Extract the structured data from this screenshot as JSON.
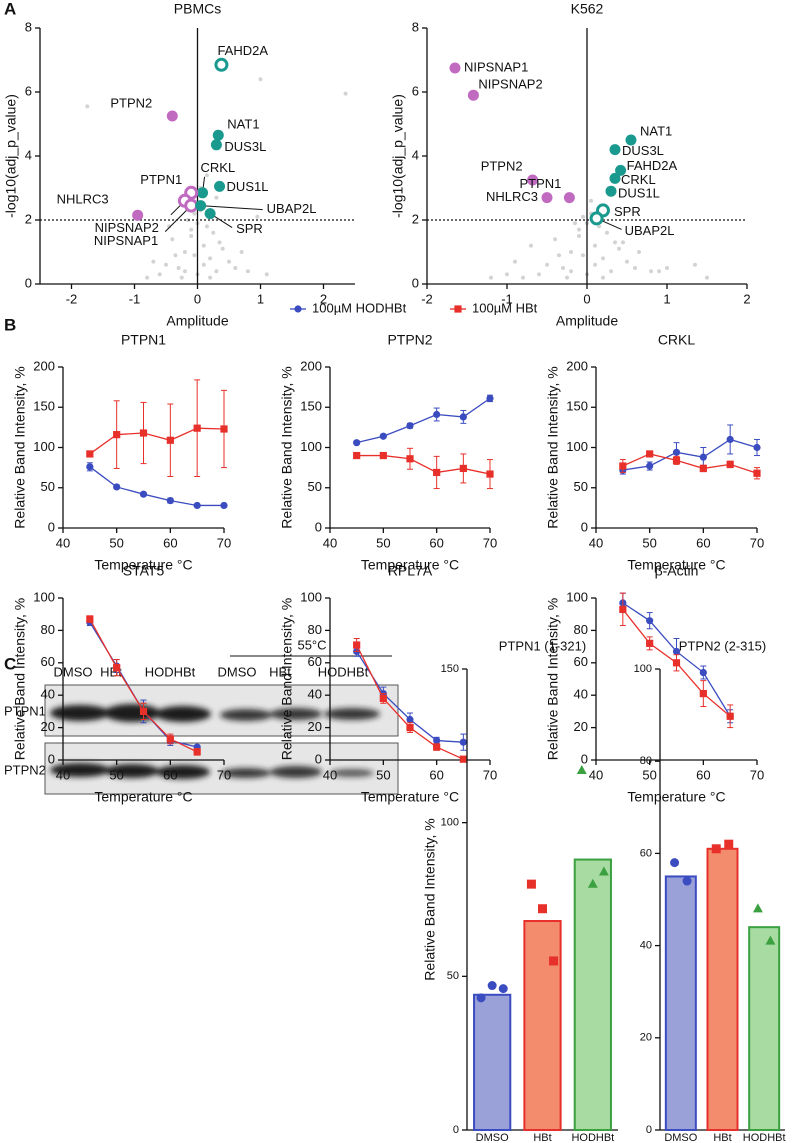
{
  "panel_labels": [
    "A",
    "B",
    "C"
  ],
  "blot": {
    "heading": "55°C",
    "lanes": [
      "DMSO",
      "HBt",
      "HODHBt",
      "DMSO",
      "HBt",
      "HODHBt"
    ],
    "rows": [
      "PTPN1",
      "PTPN2"
    ]
  },
  "chart_data": [
    {
      "type": "scatter",
      "title": "PBMCs",
      "x_label": "Amplitude",
      "y_label": "-log10(adj_p_value)",
      "xlim": [
        -2.5,
        2.5
      ],
      "ylim": [
        0,
        8
      ],
      "xticks": [
        -2,
        -1,
        0,
        1,
        2
      ],
      "yticks": [
        0,
        2,
        4,
        6,
        8
      ],
      "threshold": 2,
      "vline": 0,
      "background": {
        "color": "#d3d3d3",
        "x": [
          -0.3,
          -0.2,
          -0.1,
          0,
          0.1,
          0.2,
          0.3,
          -0.5,
          0.5,
          -0.4,
          0.4,
          -0.15,
          0.15,
          -0.05,
          0.05,
          -0.25,
          0.25,
          -0.6,
          0.6,
          -0.8,
          0.8,
          -0.35,
          0.35,
          -0.1,
          0.1,
          0,
          -0.2,
          0.2,
          -1.75,
          2.35,
          1.0,
          0.95,
          0.15,
          0.3,
          -0.45,
          0.7,
          -0.7,
          0.05,
          -0.05,
          1.1
        ],
        "y": [
          0.5,
          1.0,
          1.5,
          0.3,
          1.2,
          0.8,
          0.4,
          0.6,
          0.7,
          1.4,
          1.1,
          2.0,
          1.8,
          0.9,
          2.3,
          0.2,
          1.6,
          0.3,
          0.5,
          0.2,
          0.4,
          0.9,
          1.3,
          1.7,
          0.6,
          1.9,
          0.4,
          0.2,
          5.55,
          5.95,
          6.4,
          2.1,
          3.4,
          2.7,
          1.8,
          1.0,
          0.7,
          3.0,
          2.2,
          0.3
        ]
      },
      "points": [
        {
          "label": "FAHD2A",
          "x": 0.38,
          "y": 6.85,
          "color": "#1a9a8e",
          "style": "ring"
        },
        {
          "label": "PTPN2",
          "x": -0.4,
          "y": 5.25,
          "color": "#c06ac0",
          "style": "filled"
        },
        {
          "label": "NAT1",
          "x": 0.33,
          "y": 4.65,
          "color": "#1a9a8e",
          "style": "filled"
        },
        {
          "label": "DUS3L",
          "x": 0.3,
          "y": 4.35,
          "color": "#1a9a8e",
          "style": "filled"
        },
        {
          "label": "CRKL",
          "x": 0.08,
          "y": 2.85,
          "color": "#1a9a8e",
          "style": "filled"
        },
        {
          "label": "DUS1L",
          "x": 0.35,
          "y": 3.05,
          "color": "#1a9a8e",
          "style": "filled"
        },
        {
          "label": "PTPN1",
          "x": -0.1,
          "y": 2.85,
          "color": "#c06ac0",
          "style": "ring"
        },
        {
          "label": "NHLRC3",
          "x": -0.95,
          "y": 2.15,
          "color": "#c06ac0",
          "style": "filled"
        },
        {
          "label": "NIPSNAP2",
          "x": -0.2,
          "y": 2.6,
          "color": "#c06ac0",
          "style": "ring"
        },
        {
          "label": "NIPSNAP1",
          "x": -0.1,
          "y": 2.45,
          "color": "#c06ac0",
          "style": "ring"
        },
        {
          "label": "UBAP2L",
          "x": 0.05,
          "y": 2.45,
          "color": "#1a9a8e",
          "style": "filled"
        },
        {
          "label": "SPR",
          "x": 0.2,
          "y": 2.2,
          "color": "#1a9a8e",
          "style": "filled"
        }
      ]
    },
    {
      "type": "scatter",
      "title": "K562",
      "x_label": "Amplitude",
      "y_label": "-log10(adj_p_value)",
      "xlim": [
        -2,
        2
      ],
      "ylim": [
        0,
        8
      ],
      "xticks": [
        -2,
        -1,
        0,
        1,
        2
      ],
      "yticks": [
        0,
        2,
        4,
        6,
        8
      ],
      "threshold": 2,
      "vline": 0,
      "background": {
        "color": "#d3d3d3",
        "x": [
          -0.3,
          -0.2,
          -0.1,
          0,
          0.1,
          0.2,
          0.3,
          -0.5,
          0.5,
          -0.4,
          0.4,
          -0.15,
          0.15,
          -0.05,
          0.05,
          -0.25,
          0.25,
          -0.6,
          0.6,
          -0.8,
          0.8,
          -0.35,
          0.35,
          -0.1,
          0.1,
          0,
          -0.2,
          0.2,
          -1.0,
          1.0,
          1.35,
          -1.2,
          0.65,
          0.45,
          -0.7,
          0.9,
          -0.9,
          0.05,
          -0.05,
          1.5
        ],
        "y": [
          0.5,
          1.0,
          1.5,
          0.3,
          1.2,
          0.8,
          0.4,
          0.6,
          0.7,
          1.4,
          1.1,
          1.9,
          1.8,
          0.9,
          2.2,
          0.2,
          1.6,
          0.3,
          0.5,
          0.2,
          0.4,
          0.9,
          1.3,
          1.7,
          0.6,
          1.9,
          0.4,
          0.2,
          0.3,
          0.5,
          0.6,
          0.2,
          1.0,
          1.3,
          1.2,
          0.4,
          0.7,
          2.6,
          2.1,
          0.2
        ]
      },
      "points": [
        {
          "label": "NIPSNAP1",
          "x": -1.65,
          "y": 6.75,
          "color": "#c06ac0",
          "style": "filled"
        },
        {
          "label": "NIPSNAP2",
          "x": -1.42,
          "y": 5.9,
          "color": "#c06ac0",
          "style": "filled"
        },
        {
          "label": "PTPN2",
          "x": -0.68,
          "y": 3.25,
          "color": "#c06ac0",
          "style": "filled"
        },
        {
          "label": "NHLRC3",
          "x": -0.5,
          "y": 2.7,
          "color": "#c06ac0",
          "style": "filled"
        },
        {
          "label": "PTPN1",
          "x": -0.22,
          "y": 2.7,
          "color": "#c06ac0",
          "style": "filled"
        },
        {
          "label": "NAT1",
          "x": 0.55,
          "y": 4.5,
          "color": "#1a9a8e",
          "style": "filled"
        },
        {
          "label": "DUS3L",
          "x": 0.35,
          "y": 4.2,
          "color": "#1a9a8e",
          "style": "filled"
        },
        {
          "label": "FAHD2A",
          "x": 0.42,
          "y": 3.55,
          "color": "#1a9a8e",
          "style": "filled"
        },
        {
          "label": "CRKL",
          "x": 0.35,
          "y": 3.3,
          "color": "#1a9a8e",
          "style": "filled"
        },
        {
          "label": "DUS1L",
          "x": 0.3,
          "y": 2.9,
          "color": "#1a9a8e",
          "style": "filled"
        },
        {
          "label": "SPR",
          "x": 0.2,
          "y": 2.3,
          "color": "#1a9a8e",
          "style": "ring"
        },
        {
          "label": "UBAP2L",
          "x": 0.12,
          "y": 2.05,
          "color": "#1a9a8e",
          "style": "ring"
        }
      ]
    },
    {
      "type": "line",
      "title": "PTPN1",
      "x_label": "Temperature  °C",
      "y_label": "Relative Band Intensity, %",
      "x": [
        45,
        50,
        55,
        60,
        65,
        70
      ],
      "xlim": [
        40,
        70
      ],
      "ylim": [
        0,
        200
      ],
      "xticks": [
        40,
        50,
        60,
        70
      ],
      "yticks": [
        0,
        50,
        100,
        150,
        200
      ],
      "series": [
        {
          "name": "100µM HODHBt",
          "color": "#3b4cc0",
          "marker": "circle",
          "values": [
            76,
            51,
            42,
            34,
            28,
            28
          ],
          "errors": [
            5,
            2,
            2,
            3,
            1,
            1
          ]
        },
        {
          "name": "100µM HBt",
          "color": "#e8302a",
          "marker": "square",
          "values": [
            92,
            116,
            118,
            109,
            124,
            123
          ],
          "errors": [
            3,
            42,
            38,
            45,
            60,
            48
          ]
        }
      ]
    },
    {
      "type": "line",
      "title": "PTPN2",
      "x_label": "Temperature  °C",
      "y_label": "Relative Band Intensity, %",
      "x": [
        45,
        50,
        55,
        60,
        65,
        70
      ],
      "xlim": [
        40,
        70
      ],
      "ylim": [
        0,
        200
      ],
      "xticks": [
        40,
        50,
        60,
        70
      ],
      "yticks": [
        0,
        50,
        100,
        150,
        200
      ],
      "series": [
        {
          "color": "#3b4cc0",
          "marker": "circle",
          "values": [
            106,
            114,
            127,
            141,
            138,
            161
          ],
          "errors": [
            2,
            2,
            3,
            8,
            8,
            4
          ]
        },
        {
          "color": "#e8302a",
          "marker": "square",
          "values": [
            90,
            90,
            86,
            69,
            74,
            67
          ],
          "errors": [
            3,
            3,
            13,
            20,
            18,
            18
          ]
        }
      ]
    },
    {
      "type": "line",
      "title": "CRKL",
      "x_label": "Temperature  °C",
      "y_label": "Relative Band Intensity, %",
      "x": [
        45,
        50,
        55,
        60,
        65,
        70
      ],
      "xlim": [
        40,
        70
      ],
      "ylim": [
        0,
        200
      ],
      "xticks": [
        40,
        50,
        60,
        70
      ],
      "yticks": [
        0,
        50,
        100,
        150,
        200
      ],
      "series": [
        {
          "color": "#3b4cc0",
          "marker": "circle",
          "values": [
            72,
            77,
            94,
            88,
            110,
            100
          ],
          "errors": [
            5,
            5,
            12,
            12,
            18,
            10
          ]
        },
        {
          "color": "#e8302a",
          "marker": "square",
          "values": [
            77,
            92,
            84,
            74,
            79,
            68
          ],
          "errors": [
            8,
            3,
            5,
            4,
            4,
            7
          ]
        }
      ]
    },
    {
      "type": "line",
      "title": "STAT5",
      "x_label": "Temperature  °C",
      "y_label": "Relative Band Intensity, %",
      "x": [
        45,
        50,
        55,
        60,
        65
      ],
      "xlim": [
        40,
        70
      ],
      "ylim": [
        0,
        100
      ],
      "xticks": [
        40,
        50,
        60,
        70
      ],
      "yticks": [
        0,
        20,
        40,
        60,
        80,
        100
      ],
      "series": [
        {
          "color": "#3b4cc0",
          "marker": "circle",
          "values": [
            85,
            58,
            30,
            12,
            8
          ],
          "errors": [
            2,
            4,
            7,
            3,
            1
          ]
        },
        {
          "color": "#e8302a",
          "marker": "square",
          "values": [
            87,
            57,
            30,
            13,
            5
          ],
          "errors": [
            2,
            5,
            5,
            3,
            2
          ]
        }
      ]
    },
    {
      "type": "line",
      "title": "RPL7A",
      "x_label": "Temperature  °C",
      "y_label": "Relative Band Intensity, %",
      "x": [
        45,
        50,
        55,
        60,
        65
      ],
      "xlim": [
        40,
        70
      ],
      "ylim": [
        0,
        100
      ],
      "xticks": [
        40,
        50,
        60,
        70
      ],
      "yticks": [
        0,
        20,
        40,
        60,
        80,
        100
      ],
      "series": [
        {
          "color": "#3b4cc0",
          "marker": "circle",
          "values": [
            67,
            41,
            25,
            12,
            11
          ],
          "errors": [
            3,
            4,
            4,
            2,
            5
          ]
        },
        {
          "color": "#e8302a",
          "marker": "square",
          "values": [
            71,
            38,
            20,
            8,
            0.5
          ],
          "errors": [
            4,
            3,
            3,
            2,
            1
          ]
        }
      ]
    },
    {
      "type": "line",
      "title": "β-Actin",
      "x_label": "Temperature  °C",
      "y_label": "Relative Band Intensity, %",
      "x": [
        45,
        50,
        55,
        60,
        65
      ],
      "xlim": [
        40,
        70
      ],
      "ylim": [
        0,
        100
      ],
      "xticks": [
        40,
        50,
        60,
        70
      ],
      "yticks": [
        0,
        20,
        40,
        60,
        80,
        100
      ],
      "series": [
        {
          "color": "#3b4cc0",
          "marker": "circle",
          "values": [
            97,
            86,
            67,
            54,
            27
          ],
          "errors": [
            6,
            5,
            8,
            4,
            4
          ]
        },
        {
          "color": "#e8302a",
          "marker": "square",
          "values": [
            93,
            72,
            60,
            41,
            27
          ],
          "errors": [
            10,
            4,
            5,
            8,
            7
          ]
        }
      ]
    },
    {
      "type": "bar",
      "title": "PTPN1 (1-321)",
      "y_label": "Relative Band Intensity, %",
      "categories": [
        "DMSO",
        "HBt",
        "HODHBt"
      ],
      "values": [
        44,
        68,
        88
      ],
      "colors": [
        "#9aa0d8",
        "#f28c6c",
        "#a8dba2"
      ],
      "edge_colors": [
        "#3b4cc0",
        "#e8302a",
        "#3aa040"
      ],
      "markers": [
        "circle",
        "square",
        "triangle"
      ],
      "points": [
        [
          43,
          47,
          46
        ],
        [
          80,
          72,
          55
        ],
        [
          117,
          80,
          84
        ]
      ],
      "ylim": [
        0,
        150
      ],
      "yticks": [
        0,
        50,
        100,
        150
      ]
    },
    {
      "type": "bar",
      "title": "PTPN2 (2-315)",
      "categories": [
        "DMSO",
        "HBt",
        "HODHBt"
      ],
      "values": [
        55,
        61,
        44
      ],
      "colors": [
        "#9aa0d8",
        "#f28c6c",
        "#a8dba2"
      ],
      "edge_colors": [
        "#3b4cc0",
        "#e8302a",
        "#3aa040"
      ],
      "markers": [
        "circle",
        "square",
        "triangle"
      ],
      "points": [
        [
          58,
          54
        ],
        [
          61,
          62
        ],
        [
          48,
          41
        ]
      ],
      "ylim": [
        0,
        100
      ],
      "yticks": [
        0,
        20,
        40,
        60,
        80,
        100
      ]
    }
  ]
}
